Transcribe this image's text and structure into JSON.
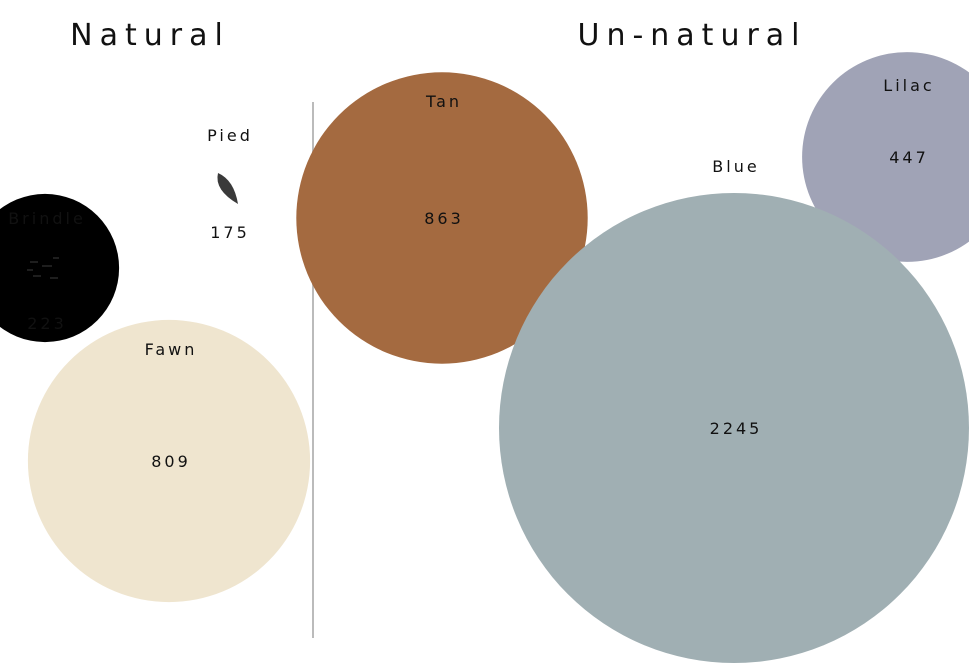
{
  "chart_data": {
    "type": "bubble",
    "groups": [
      {
        "title": "Natural",
        "items": [
          {
            "name": "Pied",
            "value": 175,
            "color": "#3a3a3a"
          },
          {
            "name": "Brindle",
            "value": 223,
            "color": "#000000"
          },
          {
            "name": "Fawn",
            "value": 809,
            "color": "#efe5cf"
          }
        ]
      },
      {
        "title": "Un-natural",
        "items": [
          {
            "name": "Tan",
            "value": 863,
            "color": "#a46a40"
          },
          {
            "name": "Lilac",
            "value": 447,
            "color": "#a0a3b6"
          },
          {
            "name": "Blue",
            "value": 2245,
            "color": "#a0afb3"
          }
        ]
      }
    ],
    "divider_color": "#bbbbbb"
  }
}
